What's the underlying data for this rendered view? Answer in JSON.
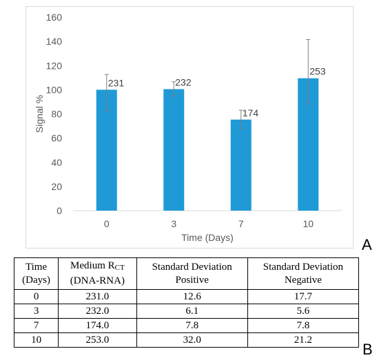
{
  "chart_data": {
    "type": "bar",
    "categories": [
      "0",
      "3",
      "7",
      "10"
    ],
    "values": [
      100,
      100.5,
      75.3,
      109.5
    ],
    "error_plus": [
      12.6,
      6.1,
      7.8,
      32.0
    ],
    "error_minus": [
      17.7,
      5.6,
      7.8,
      21.2
    ],
    "data_labels": [
      "231",
      "232",
      "174",
      "253"
    ],
    "title": "",
    "xlabel": "Time (Days)",
    "ylabel": "Signal %",
    "ylim": [
      0,
      160
    ],
    "yticks": [
      "0",
      "20",
      "40",
      "60",
      "80",
      "100",
      "120",
      "140",
      "160"
    ],
    "grid": false,
    "legend": "none",
    "bar_color": "#1f9ad6"
  },
  "panels": {
    "a": "A",
    "b": "B"
  },
  "table": {
    "headers": [
      {
        "line1": "Time",
        "line2": "(Days)"
      },
      {
        "line1": "Medium R",
        "sub": "CT",
        "line2": "(DNA-RNA)"
      },
      {
        "line1": "Standard Deviation",
        "line2": "Positive"
      },
      {
        "line1": "Standard Deviation",
        "line2": "Negative"
      }
    ],
    "rows": [
      [
        "0",
        "231.0",
        "12.6",
        "17.7"
      ],
      [
        "3",
        "232.0",
        "6.1",
        "5.6"
      ],
      [
        "7",
        "174.0",
        "7.8",
        "7.8"
      ],
      [
        "10",
        "253.0",
        "32.0",
        "21.2"
      ]
    ]
  }
}
